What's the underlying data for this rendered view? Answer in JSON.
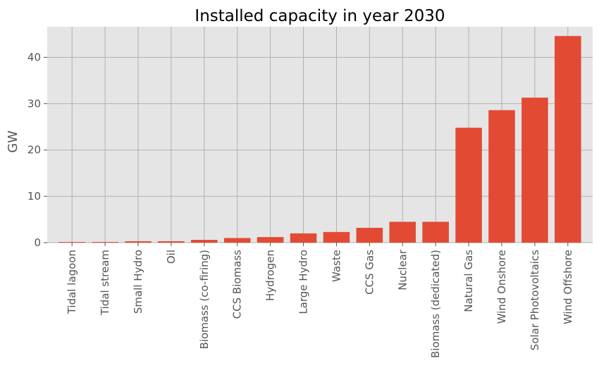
{
  "chart_data": {
    "type": "bar",
    "title": "Installed capacity in year 2030",
    "xlabel": "",
    "ylabel": "GW",
    "ylim": [
      0,
      46.6
    ],
    "yticks": [
      0,
      10,
      20,
      30,
      40
    ],
    "ytick_labels": [
      "0",
      "10",
      "20",
      "30",
      "40"
    ],
    "grid": true,
    "categories": [
      "Tidal lagoon",
      "Tidal stream",
      "Small Hydro",
      "Oil",
      "Biomass (co-firing)",
      "CCS Biomass",
      "Hydrogen",
      "Large Hydro",
      "Waste",
      "CCS Gas",
      "Nuclear",
      "Biomass (dedicated)",
      "Natural Gas",
      "Wind Onshore",
      "Solar Photovoltaics",
      "Wind Offshore"
    ],
    "values": [
      0.1,
      0.1,
      0.3,
      0.3,
      0.6,
      1.0,
      1.2,
      2.0,
      2.3,
      3.2,
      4.5,
      4.5,
      24.8,
      28.6,
      31.3,
      44.6
    ],
    "bar_color": "#E24A33",
    "background_color": "#E5E5E5",
    "grid_color": "#B0B0B0"
  }
}
